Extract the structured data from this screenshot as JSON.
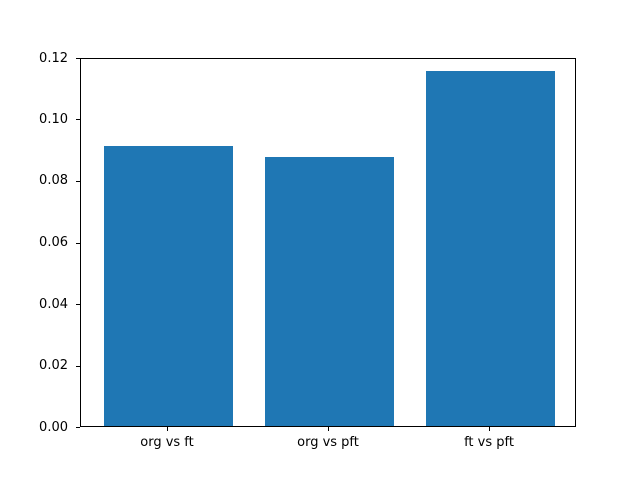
{
  "chart_data": {
    "type": "bar",
    "categories": [
      "org vs ft",
      "org vs pft",
      "ft vs pft"
    ],
    "values": [
      0.0915,
      0.0878,
      0.116
    ],
    "title": "",
    "xlabel": "",
    "ylabel": "",
    "ylim": [
      0,
      0.12
    ],
    "yticks": [
      0,
      0.02,
      0.04,
      0.06,
      0.08,
      0.1,
      0.12
    ],
    "ytick_labels": [
      "0.00",
      "0.02",
      "0.04",
      "0.06",
      "0.08",
      "0.10",
      "0.12"
    ],
    "bar_color": "#1f77b4",
    "background": "#ffffff",
    "grid": false,
    "legend": "none",
    "bar_width_fraction": 0.8,
    "x_data_range": [
      -0.54,
      2.54
    ]
  }
}
